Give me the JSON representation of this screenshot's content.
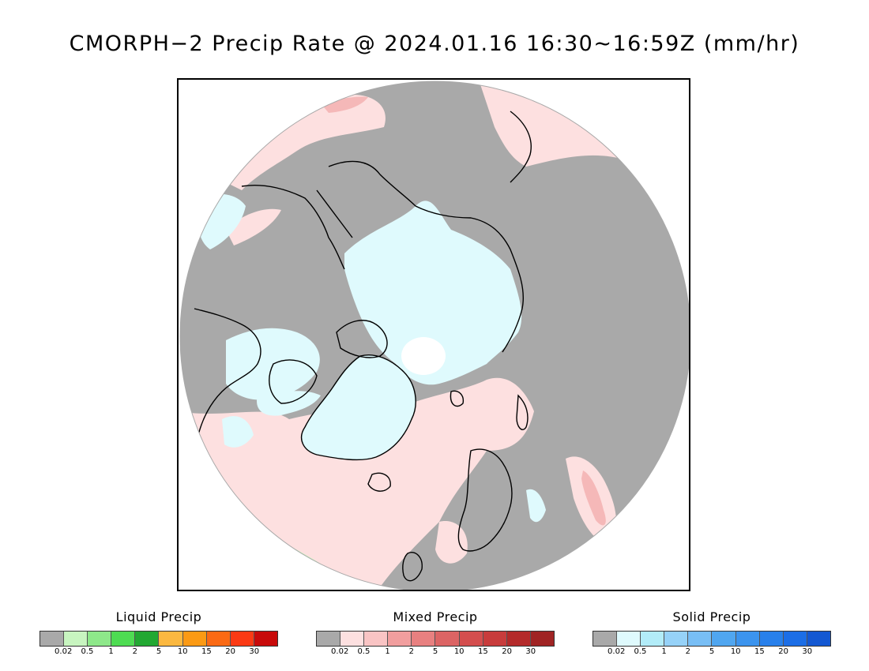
{
  "title": "CMORPH−2 Precip Rate @ 2024.01.16 16:30∼16:59Z (mm/hr)",
  "map": {
    "projection": "north-polar-stereographic",
    "colors": {
      "no_precip": "#a9a9a9",
      "mixed_light": "#fde0e0",
      "mixed_medium": "#f5b8b8",
      "solid_light": "#dffafd",
      "liquid_light": "#c8f5c0",
      "coast": "#000000",
      "polar_gap": "#ffffff"
    }
  },
  "legends": [
    {
      "title": "Liquid Precip",
      "colors": [
        "#a9a9a9",
        "#c8f5c0",
        "#8ee88a",
        "#4edc52",
        "#22a832",
        "#fbb840",
        "#fb9a14",
        "#fb6a14",
        "#fb3a14",
        "#c80a0a"
      ],
      "ticks": [
        "0.02",
        "0.5",
        "1",
        "2",
        "5",
        "10",
        "15",
        "20",
        "30"
      ]
    },
    {
      "title": "Mixed Precip",
      "colors": [
        "#a9a9a9",
        "#fde0e0",
        "#f9c4c4",
        "#f19e9e",
        "#e88080",
        "#dc6464",
        "#d44e4e",
        "#c83c3c",
        "#b42a2a",
        "#a02424"
      ],
      "ticks": [
        "0.02",
        "0.5",
        "1",
        "2",
        "5",
        "10",
        "15",
        "20",
        "30"
      ]
    },
    {
      "title": "Solid Precip",
      "colors": [
        "#a9a9a9",
        "#dffafd",
        "#b2ecf8",
        "#96d2f8",
        "#78bef5",
        "#50a6f0",
        "#3c94ee",
        "#2880eb",
        "#1c6ee6",
        "#1458d2"
      ],
      "ticks": [
        "0.02",
        "0.5",
        "1",
        "2",
        "5",
        "10",
        "15",
        "20",
        "30"
      ]
    }
  ]
}
